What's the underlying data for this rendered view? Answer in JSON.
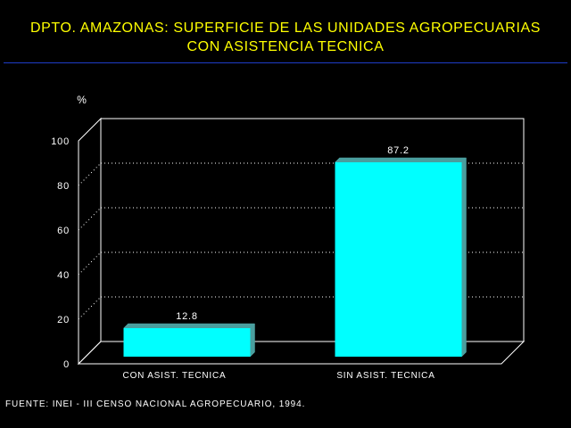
{
  "title": {
    "line1": "DPTO. AMAZONAS: SUPERFICIE DE LAS UNIDADES AGROPECUARIAS",
    "line2": "CON ASISTENCIA TECNICA"
  },
  "source": "FUENTE: INEI - III CENSO NACIONAL AGROPECUARIO, 1994.",
  "colors": {
    "background": "#000000",
    "title": "#ffff00",
    "rule": "#1f3cc8",
    "bar_front": "#00ffff",
    "bar_side": "#4a9e9e",
    "axis": "#ffffff"
  },
  "chart_data": {
    "type": "bar",
    "ylabel": "%",
    "ylim": [
      0,
      100
    ],
    "yticks": [
      "0",
      "20",
      "40",
      "60",
      "80",
      "100"
    ],
    "categories": [
      "CON ASIST. TECNICA",
      "SIN ASIST. TECNICA"
    ],
    "values": [
      12.8,
      87.2
    ],
    "value_labels": [
      "12.8",
      "87.2"
    ],
    "grid": true,
    "three_d": true
  }
}
